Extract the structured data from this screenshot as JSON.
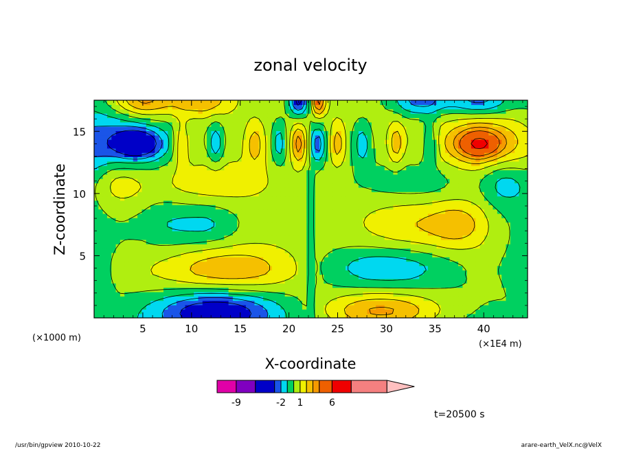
{
  "chart_data": {
    "type": "heatmap",
    "title": "zonal velocity",
    "xlabel": "X-coordinate",
    "ylabel": "Z-coordinate",
    "x_unit_left": "(×1000 m)",
    "x_unit_right": "(×1E4 m)",
    "xlim": [
      0,
      44.5
    ],
    "ylim": [
      0,
      17.5
    ],
    "x_ticks": [
      5,
      10,
      15,
      20,
      25,
      30,
      35,
      40
    ],
    "y_ticks": [
      5,
      10,
      15
    ],
    "x_tick_labels": [
      "5",
      "10",
      "15",
      "20",
      "25",
      "30",
      "35",
      "40"
    ],
    "y_tick_labels": [
      "5",
      "10",
      "15"
    ],
    "colorbar": {
      "labels": [
        "-9",
        "-2",
        "1",
        "6"
      ],
      "label_values": [
        -9,
        -2,
        1,
        6
      ],
      "levels": [
        -9,
        -6,
        -3,
        -2,
        -1,
        0,
        1,
        2,
        3,
        4,
        6,
        9
      ],
      "colors": [
        "#e000a8",
        "#8000c0",
        "#0000c8",
        "#1a55e8",
        "#00d8f0",
        "#00d060",
        "#b0ee10",
        "#f0f000",
        "#f5c000",
        "#f59a00",
        "#ee6000",
        "#f00000",
        "#f58080",
        "#ffc0c0"
      ]
    },
    "time_label": "t=20500 s",
    "blobs": [
      {
        "x": 2.5,
        "z": 14,
        "rx": 6,
        "ry": 2.5,
        "v": -2.6
      },
      {
        "x": 4.5,
        "z": 14,
        "rx": 2.2,
        "ry": 1.1,
        "v": -3.8
      },
      {
        "x": 41,
        "z": 14,
        "rx": 6,
        "ry": 2.5,
        "v": 2.6
      },
      {
        "x": 39.5,
        "z": 14,
        "rx": 2.2,
        "ry": 1.1,
        "v": 3.8
      },
      {
        "x": 2.5,
        "z": 11,
        "rx": 2.5,
        "ry": 2,
        "v": 1.7
      },
      {
        "x": 42,
        "z": 11,
        "rx": 2.5,
        "ry": 2,
        "v": -1.7
      },
      {
        "x": 12,
        "z": 11,
        "rx": 6,
        "ry": 1.8,
        "v": 1.3
      },
      {
        "x": 33,
        "z": 11,
        "rx": 6,
        "ry": 1.8,
        "v": -1.3
      },
      {
        "x": 7.5,
        "z": 7.5,
        "rx": 3.5,
        "ry": 2.2,
        "v": -1.4
      },
      {
        "x": 12,
        "z": 7.5,
        "rx": 3,
        "ry": 1.8,
        "v": -1.4
      },
      {
        "x": 32.5,
        "z": 7.5,
        "rx": 5,
        "ry": 2.2,
        "v": 1.4
      },
      {
        "x": 37.5,
        "z": 7.5,
        "rx": 3,
        "ry": 2,
        "v": 1.7
      },
      {
        "x": 14,
        "z": 4,
        "rx": 7,
        "ry": 1.8,
        "v": 2.3
      },
      {
        "x": 30,
        "z": 4,
        "rx": 7,
        "ry": 1.8,
        "v": -2.3
      },
      {
        "x": 12.5,
        "z": 0.5,
        "rx": 6,
        "ry": 1.6,
        "v": -4
      },
      {
        "x": 29.5,
        "z": 0.5,
        "rx": 6,
        "ry": 1.6,
        "v": 3.5
      },
      {
        "x": 5,
        "z": 17.5,
        "rx": 3,
        "ry": 1.3,
        "v": 3
      },
      {
        "x": 11,
        "z": 17.5,
        "rx": 3,
        "ry": 1.3,
        "v": 2.5
      },
      {
        "x": 33.5,
        "z": 17.5,
        "rx": 3,
        "ry": 1.3,
        "v": -3
      },
      {
        "x": 39.5,
        "z": 17.5,
        "rx": 3,
        "ry": 1.3,
        "v": -3
      },
      {
        "x": 21,
        "z": 17.5,
        "rx": 1,
        "ry": 1.3,
        "v": -4
      },
      {
        "x": 23,
        "z": 17.5,
        "rx": 0.8,
        "ry": 1.3,
        "v": 4
      },
      {
        "x": 21,
        "z": 14,
        "rx": 0.8,
        "ry": 1.6,
        "v": 3
      },
      {
        "x": 23,
        "z": 14,
        "rx": 0.8,
        "ry": 1.6,
        "v": -3
      },
      {
        "x": 9,
        "z": 14,
        "rx": 0.8,
        "ry": 1.8,
        "v": 2
      },
      {
        "x": 12.5,
        "z": 14,
        "rx": 0.8,
        "ry": 1.8,
        "v": -2
      },
      {
        "x": 16.5,
        "z": 14,
        "rx": 1,
        "ry": 1.8,
        "v": 2
      },
      {
        "x": 19,
        "z": 14,
        "rx": 0.8,
        "ry": 1.8,
        "v": -2
      },
      {
        "x": 25,
        "z": 14,
        "rx": 0.8,
        "ry": 1.8,
        "v": 2
      },
      {
        "x": 27.5,
        "z": 14,
        "rx": 1,
        "ry": 1.8,
        "v": -2
      },
      {
        "x": 31,
        "z": 14,
        "rx": 0.8,
        "ry": 1.8,
        "v": 2
      },
      {
        "x": 34.5,
        "z": 14,
        "rx": 0.8,
        "ry": 1.8,
        "v": -2
      }
    ],
    "background_v": 0.5,
    "edge_v": -0.4
  },
  "footer": {
    "left": "/usr/bin/gpview  2010-10-22",
    "right": "arare-earth_VelX.nc@VelX"
  }
}
